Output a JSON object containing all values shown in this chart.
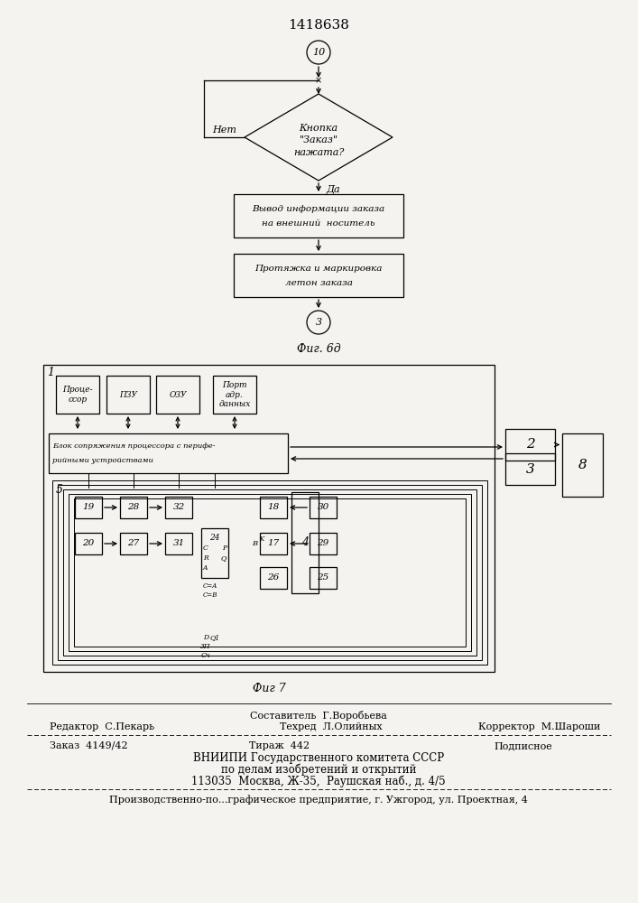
{
  "patent_number": "1418638",
  "bg_color": "#f5f3f0",
  "fig_caption1": "Фиг. 6д",
  "fig_caption2": "Фиг 7",
  "flowchart": {
    "start_circle_label": "10",
    "no_label": "Нет",
    "yes_label": "Да",
    "box1_line1": "Вывод информации заказа",
    "box1_line2": "на внешний  носитель",
    "box2_line1": "Протяжка и маркировка",
    "box2_line2": "летон заказа",
    "end_circle_label": "3"
  },
  "footer": {
    "sestavitel": "Составитель  Г.Воробьева",
    "redaktor": "Редактор  С.Пекарь",
    "tekhred": "Техред  Л.Олийных",
    "korrektor": "Корректор  М.Шароши",
    "zakaz": "Заказ  4149/42",
    "tirazh": "Тираж  442",
    "podpisnoe": "Подписное",
    "vniipи_line1": "ВНИИПИ Государственного комитета СССР",
    "vniipи_line2": "по делам изобретений и открытий",
    "vniipи_line3": "113035  Москва, Ж-35,  Раушская наб., д. 4/5",
    "factory_line": "Производственно-по...графическое предприятие, г. Ужгород, ул. Проектная, 4"
  }
}
